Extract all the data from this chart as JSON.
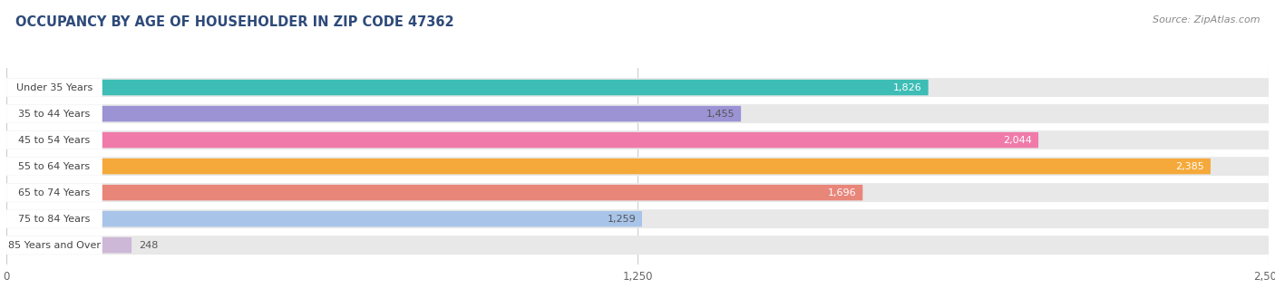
{
  "title": "OCCUPANCY BY AGE OF HOUSEHOLDER IN ZIP CODE 47362",
  "source": "Source: ZipAtlas.com",
  "categories": [
    "Under 35 Years",
    "35 to 44 Years",
    "45 to 54 Years",
    "55 to 64 Years",
    "65 to 74 Years",
    "75 to 84 Years",
    "85 Years and Over"
  ],
  "values": [
    1826,
    1455,
    2044,
    2385,
    1696,
    1259,
    248
  ],
  "bar_colors": [
    "#3dbdb5",
    "#9b93d4",
    "#f07bab",
    "#f5a93a",
    "#e8867a",
    "#a8c4e8",
    "#cdb8d8"
  ],
  "bar_background": "#e8e8e8",
  "xlim_max": 2500,
  "xticks": [
    0,
    1250,
    2500
  ],
  "xtick_labels": [
    "0",
    "1,250",
    "2,500"
  ],
  "value_color_inside": [
    "#ffffff",
    "#555555",
    "#ffffff",
    "#ffffff",
    "#ffffff",
    "#555555",
    "#555555"
  ],
  "fig_bg": "#ffffff",
  "title_color": "#2e4a7a",
  "source_color": "#888888",
  "label_bg": "#ffffff",
  "label_text_color": "#444444"
}
